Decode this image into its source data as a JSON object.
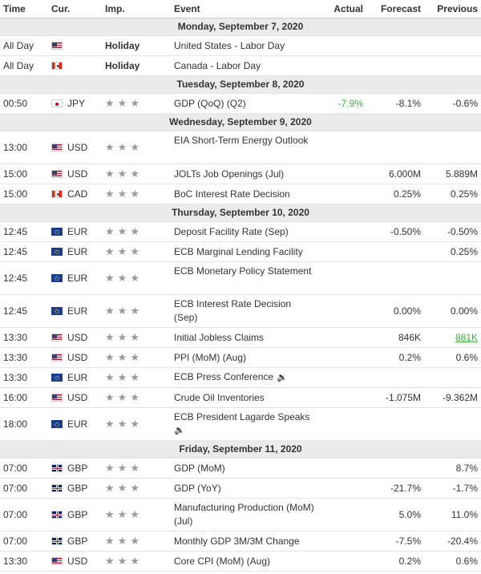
{
  "columns": {
    "time": "Time",
    "cur": "Cur.",
    "imp": "Imp.",
    "event": "Event",
    "actual": "Actual",
    "forecast": "Forecast",
    "previous": "Previous"
  },
  "rows": [
    {
      "type": "day",
      "label": "Monday, September 7, 2020"
    },
    {
      "type": "event",
      "time": "All Day",
      "flag": "us",
      "cur": "",
      "imp": "Holiday",
      "event": "United States - Labor Day",
      "actual": "",
      "forecast": "",
      "previous": ""
    },
    {
      "type": "event",
      "time": "All Day",
      "flag": "ca",
      "cur": "",
      "imp": "Holiday",
      "event": "Canada - Labor Day",
      "actual": "",
      "forecast": "",
      "previous": ""
    },
    {
      "type": "day",
      "label": "Tuesday, September 8, 2020"
    },
    {
      "type": "event",
      "time": "00:50",
      "flag": "jp",
      "cur": "JPY",
      "imp": "stars",
      "event": "GDP (QoQ) (Q2)",
      "actual": "-7.9%",
      "actual_color": "#3bb53b",
      "forecast": "-8.1%",
      "previous": "-0.6%"
    },
    {
      "type": "day",
      "label": "Wednesday, September 9, 2020"
    },
    {
      "type": "event",
      "tall": true,
      "time": "13:00",
      "flag": "us",
      "cur": "USD",
      "imp": "stars",
      "event": "EIA Short-Term Energy Outlook",
      "actual": "",
      "forecast": "",
      "previous": ""
    },
    {
      "type": "event",
      "time": "15:00",
      "flag": "us",
      "cur": "USD",
      "imp": "stars",
      "event": "JOLTs Job Openings (Jul)",
      "actual": "",
      "forecast": "6.000M",
      "previous": "5.889M"
    },
    {
      "type": "event",
      "time": "15:00",
      "flag": "ca",
      "cur": "CAD",
      "imp": "stars",
      "event": "BoC Interest Rate Decision",
      "actual": "",
      "forecast": "0.25%",
      "previous": "0.25%"
    },
    {
      "type": "day",
      "label": "Thursday, September 10, 2020"
    },
    {
      "type": "event",
      "time": "12:45",
      "flag": "eu",
      "cur": "EUR",
      "imp": "stars",
      "event": "Deposit Facility Rate (Sep)",
      "actual": "",
      "forecast": "-0.50%",
      "previous": "-0.50%"
    },
    {
      "type": "event",
      "time": "12:45",
      "flag": "eu",
      "cur": "EUR",
      "imp": "stars",
      "event": "ECB Marginal Lending Facility",
      "actual": "",
      "forecast": "",
      "previous": "0.25%"
    },
    {
      "type": "event",
      "tall": true,
      "time": "12:45",
      "flag": "eu",
      "cur": "EUR",
      "imp": "stars",
      "event": "ECB Monetary Policy Statement",
      "actual": "",
      "forecast": "",
      "previous": ""
    },
    {
      "type": "event",
      "tall": true,
      "time": "12:45",
      "flag": "eu",
      "cur": "EUR",
      "imp": "stars",
      "event": "ECB Interest Rate Decision",
      "event2": "(Sep)",
      "actual": "",
      "forecast": "0.00%",
      "previous": "0.00%"
    },
    {
      "type": "event",
      "time": "13:30",
      "flag": "us",
      "cur": "USD",
      "imp": "stars",
      "event": "Initial Jobless Claims",
      "actual": "",
      "forecast": "846K",
      "previous": "881K",
      "previous_color": "#3bb53b",
      "previous_underline": true
    },
    {
      "type": "event",
      "time": "13:30",
      "flag": "us",
      "cur": "USD",
      "imp": "stars",
      "event": "PPI (MoM) (Aug)",
      "actual": "",
      "forecast": "0.2%",
      "previous": "0.6%"
    },
    {
      "type": "event",
      "time": "13:30",
      "flag": "eu",
      "cur": "EUR",
      "imp": "stars",
      "event": "ECB Press Conference",
      "speaker": true,
      "actual": "",
      "forecast": "",
      "previous": ""
    },
    {
      "type": "event",
      "time": "16:00",
      "flag": "us",
      "cur": "USD",
      "imp": "stars",
      "event": "Crude Oil Inventories",
      "actual": "",
      "forecast": "-1.075M",
      "previous": "-9.362M"
    },
    {
      "type": "event",
      "tall": true,
      "time": "18:00",
      "flag": "eu",
      "cur": "EUR",
      "imp": "stars",
      "event": "ECB President Lagarde Speaks",
      "speaker2": true,
      "actual": "",
      "forecast": "",
      "previous": ""
    },
    {
      "type": "day",
      "label": "Friday, September 11, 2020"
    },
    {
      "type": "event",
      "time": "07:00",
      "flag": "gb",
      "cur": "GBP",
      "imp": "stars",
      "event": "GDP (MoM)",
      "actual": "",
      "forecast": "",
      "previous": "8.7%"
    },
    {
      "type": "event",
      "time": "07:00",
      "flag": "gb",
      "cur": "GBP",
      "imp": "stars",
      "event": "GDP (YoY)",
      "actual": "",
      "forecast": "-21.7%",
      "previous": "-1.7%"
    },
    {
      "type": "event",
      "tall": true,
      "time": "07:00",
      "flag": "gb",
      "cur": "GBP",
      "imp": "stars",
      "event": "Manufacturing Production (MoM)",
      "event2": "(Jul)",
      "actual": "",
      "forecast": "5.0%",
      "previous": "11.0%"
    },
    {
      "type": "event",
      "time": "07:00",
      "flag": "gb",
      "cur": "GBP",
      "imp": "stars",
      "event": "Monthly GDP 3M/3M Change",
      "actual": "",
      "forecast": "-7.5%",
      "previous": "-20.4%"
    },
    {
      "type": "event",
      "time": "13:30",
      "flag": "us",
      "cur": "USD",
      "imp": "stars",
      "event": "Core CPI (MoM) (Aug)",
      "actual": "",
      "forecast": "0.2%",
      "previous": "0.6%"
    }
  ]
}
